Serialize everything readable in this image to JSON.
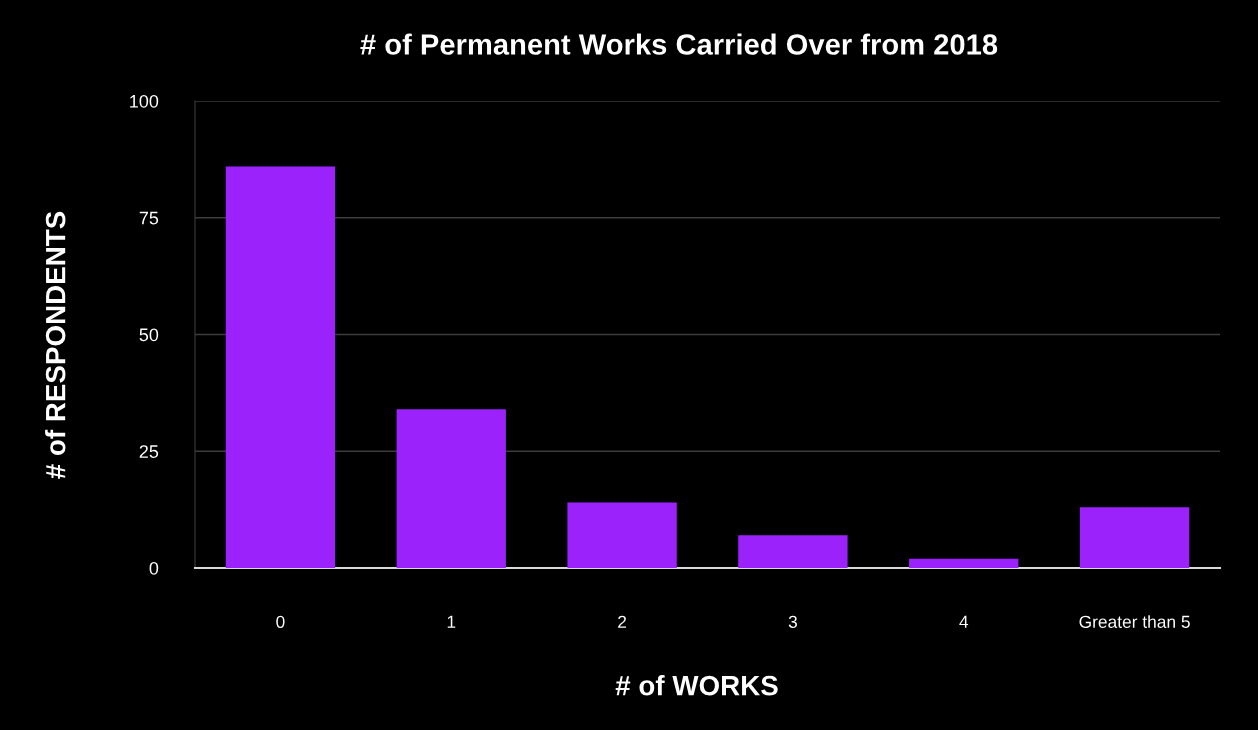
{
  "chart_data": {
    "type": "bar",
    "title": "# of Permanent Works Carried Over from 2018",
    "xlabel": "# of WORKS",
    "ylabel": "# of RESPONDENTS",
    "categories": [
      "0",
      "1",
      "2",
      "3",
      "4",
      "Greater than 5"
    ],
    "values": [
      86,
      34,
      14,
      7,
      2,
      13
    ],
    "color": "#9b22fb",
    "ylim": [
      0,
      100
    ],
    "yticks": [
      0,
      25,
      50,
      75,
      100
    ],
    "grid": "y"
  }
}
